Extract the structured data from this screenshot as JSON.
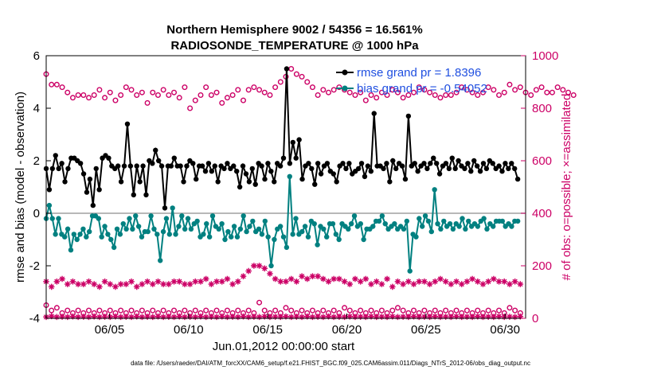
{
  "chart_data": {
    "type": "line",
    "title": "Northern Hemisphere 9002 / 54356 = 16.561%",
    "subtitle": "RADIOSONDE_TEMPERATURE @ 1000 hPa",
    "xlabel": "Jun.01,2012 00:00:00 start",
    "ylabel": "rmse and bias (model - observation)",
    "y2label": "# of obs: o=possible; ×=assimilated",
    "footnote": "data file: /Users/raeder/DAI/ATM_forcXX/CAM6_setup/f.e21.FHIST_BGC.f09_025.CAM6assim.011/Diags_NTrS_2012-06/obs_diag_output.nc",
    "xlim": [
      1.0,
      31.3
    ],
    "ylim": [
      -4,
      6
    ],
    "y2lim": [
      0,
      1000
    ],
    "xticks": [
      {
        "v": 5,
        "label": "06/05"
      },
      {
        "v": 10,
        "label": "06/10"
      },
      {
        "v": 15,
        "label": "06/15"
      },
      {
        "v": 20,
        "label": "06/20"
      },
      {
        "v": 25,
        "label": "06/25"
      },
      {
        "v": 30,
        "label": "06/30"
      }
    ],
    "yticks": [
      -4,
      -2,
      0,
      2,
      4,
      6
    ],
    "y2ticks": [
      0,
      200,
      400,
      600,
      800,
      1000
    ],
    "colors": {
      "rmse": "#000000",
      "bias": "#008080",
      "obs": "#cc0066",
      "zero": "#a0a0a0",
      "legend_text": "#1f4fe0"
    },
    "x_start": 1.0,
    "x_step": 0.25,
    "series": [
      {
        "name": "rmse",
        "legend": "rmse grand pr = 1.8396",
        "values": [
          1.7,
          0.9,
          1.7,
          2.2,
          1.7,
          1.9,
          1.2,
          1.7,
          2.1,
          2.1,
          2.0,
          1.9,
          1.5,
          0.8,
          1.3,
          0.3,
          1.7,
          0.9,
          2.1,
          2.2,
          2.1,
          1.8,
          1.7,
          1.8,
          1.2,
          1.8,
          3.4,
          1.8,
          0.7,
          1.8,
          1.2,
          1.8,
          0.7,
          2.0,
          1.9,
          2.4,
          2.0,
          1.8,
          0.2,
          1.8,
          1.8,
          2.1,
          1.8,
          1.8,
          1.2,
          1.8,
          2.0,
          1.9,
          1.3,
          1.8,
          1.8,
          1.6,
          1.9,
          1.6,
          1.8,
          1.2,
          1.8,
          1.7,
          1.9,
          1.7,
          1.8,
          1.6,
          1.0,
          1.8,
          1.5,
          1.2,
          1.7,
          1.1,
          1.9,
          1.8,
          1.3,
          1.9,
          1.6,
          1.2,
          1.9,
          1.8,
          2.1,
          5.5,
          1.9,
          2.7,
          2.1,
          2.8,
          1.3,
          1.8,
          1.9,
          1.7,
          1.1,
          1.9,
          1.5,
          1.8,
          1.9,
          1.6,
          1.5,
          1.2,
          1.8,
          1.9,
          1.7,
          1.9,
          1.5,
          1.6,
          1.7,
          1.9,
          1.4,
          1.8,
          1.6,
          3.8,
          1.8,
          1.8,
          1.7,
          1.9,
          1.2,
          2.0,
          1.7,
          1.9,
          1.8,
          1.3,
          3.7,
          1.8,
          1.9,
          1.6,
          1.8,
          1.9,
          1.7,
          1.9,
          2.1,
          1.9,
          1.5,
          1.8,
          1.9,
          1.7,
          2.1,
          1.7,
          2.0,
          1.8,
          1.7,
          1.9,
          1.6,
          2.0,
          1.8,
          1.6,
          1.9,
          1.7,
          2.0,
          1.9,
          1.7,
          1.8,
          1.6,
          1.9,
          1.7,
          1.9,
          1.7,
          1.3
        ]
      },
      {
        "name": "bias",
        "legend": "bias grand pr = -0.54052",
        "values": [
          -0.2,
          0.3,
          -0.2,
          -0.8,
          -0.2,
          -0.8,
          -0.9,
          -0.6,
          -1.4,
          -0.8,
          -1.0,
          -0.8,
          -0.6,
          -0.9,
          -0.7,
          -0.1,
          -0.1,
          -0.2,
          -0.9,
          -0.5,
          -0.8,
          -1.0,
          -1.3,
          -0.6,
          -0.8,
          -0.4,
          -0.6,
          -0.2,
          -0.6,
          -0.1,
          -0.5,
          -0.9,
          -0.7,
          -0.7,
          -0.1,
          -0.6,
          -0.8,
          -1.8,
          -0.7,
          -0.2,
          -0.8,
          0.2,
          -0.8,
          -0.5,
          -0.1,
          -0.6,
          -0.2,
          -0.6,
          -0.4,
          -0.3,
          -0.9,
          -0.8,
          -0.4,
          -0.9,
          -0.1,
          -0.5,
          -0.6,
          -0.4,
          -1.0,
          -0.7,
          -0.9,
          -0.5,
          -0.9,
          -0.6,
          -0.1,
          -0.7,
          -0.5,
          -0.3,
          -0.7,
          -0.6,
          -0.8,
          -0.3,
          -0.9,
          -2.0,
          -1.0,
          -0.6,
          -0.5,
          -0.9,
          -1.3,
          1.4,
          -0.8,
          -0.2,
          -0.8,
          -0.7,
          -0.5,
          -0.9,
          -0.3,
          -0.4,
          -1.2,
          -0.5,
          -0.6,
          -0.9,
          -0.4,
          -0.4,
          -0.8,
          -1.0,
          -0.4,
          -0.5,
          -0.6,
          -0.4,
          -0.1,
          -0.5,
          -0.4,
          -1.0,
          -0.6,
          -0.6,
          -0.5,
          -0.3,
          -0.3,
          -0.1,
          -0.4,
          -0.6,
          -0.5,
          -0.4,
          -0.6,
          -0.5,
          -0.6,
          -0.3,
          -2.2,
          -0.8,
          -0.9,
          -0.2,
          -0.5,
          -0.1,
          -0.3,
          -0.7,
          0.9,
          -0.4,
          -0.6,
          -0.3,
          -0.5,
          -0.4,
          -0.6,
          -0.4,
          -0.5,
          -0.2,
          -0.6,
          -0.3,
          -0.5,
          -0.4,
          -0.5,
          -0.3,
          -0.2,
          -0.6,
          -0.4,
          -0.5,
          -0.3,
          -0.3,
          -0.3,
          -0.5,
          -0.4,
          -0.5,
          -0.3,
          -0.3
        ]
      },
      {
        "name": "obs_possible_high",
        "values": [
          930,
          890,
          890,
          880,
          860,
          840,
          850,
          850,
          840,
          850,
          870,
          840,
          860,
          830,
          850,
          880,
          870,
          850,
          860,
          820,
          860,
          850,
          870,
          850,
          860,
          840,
          880,
          800,
          830,
          850,
          880,
          850,
          860,
          820,
          840,
          850,
          870,
          830,
          870,
          880,
          870,
          860,
          850,
          880,
          900,
          920,
          950,
          930,
          920,
          900,
          880,
          850,
          870,
          860,
          870,
          880,
          870,
          860,
          850,
          860,
          830,
          850,
          840,
          860,
          850,
          870,
          860,
          840,
          850,
          860,
          880,
          870,
          860,
          850,
          840,
          850,
          850,
          860,
          880,
          870,
          860,
          850,
          860,
          880,
          870,
          850,
          860,
          890,
          870,
          880,
          860,
          850,
          870,
          880,
          860,
          860,
          880,
          870,
          860,
          850
        ]
      },
      {
        "name": "obs_assimilated_high",
        "values": [
          140,
          120,
          140,
          150,
          130,
          140,
          130,
          130,
          140,
          130,
          120,
          140,
          130,
          120,
          130,
          130,
          140,
          120,
          130,
          140,
          130,
          140,
          130,
          130,
          140,
          140,
          130,
          130,
          140,
          140,
          150,
          130,
          140,
          140,
          150,
          130,
          140,
          160,
          180,
          200,
          200,
          190,
          170,
          150,
          140,
          140,
          150,
          140,
          160,
          150,
          160,
          160,
          150,
          140,
          150,
          150,
          140,
          130,
          150,
          140,
          150,
          130,
          140,
          130,
          150,
          120,
          140,
          130,
          140,
          130,
          140,
          140,
          130,
          140,
          150,
          140,
          130,
          140,
          130,
          140,
          150,
          140,
          130,
          140,
          150,
          140,
          140,
          130,
          140,
          130
        ]
      },
      {
        "name": "obs_possible_low",
        "values": [
          50,
          30,
          40,
          20,
          30,
          20,
          30,
          20,
          30,
          20,
          30,
          20,
          30,
          20,
          30,
          20,
          30,
          20,
          30,
          20,
          30,
          20,
          30,
          20,
          30,
          20,
          30,
          20,
          30,
          20,
          30,
          20,
          30,
          20,
          30,
          20,
          30,
          20,
          30,
          20,
          60,
          30,
          20,
          30,
          20,
          40,
          30,
          20,
          30,
          20,
          30,
          20,
          30,
          20,
          30,
          20,
          40,
          30,
          20,
          30,
          20,
          30,
          20,
          30,
          20,
          30,
          40,
          30,
          20,
          30,
          20,
          30,
          20,
          30,
          20,
          30,
          20,
          30,
          20,
          30,
          20,
          30,
          20,
          30,
          20,
          30,
          20,
          40,
          30,
          20
        ]
      },
      {
        "name": "obs_assimilated_low",
        "values": [
          5,
          8,
          5,
          6,
          5,
          7,
          5,
          6,
          5,
          7,
          5,
          6,
          5,
          7,
          5,
          6,
          5,
          7,
          5,
          6,
          5,
          7,
          5,
          6,
          5,
          7,
          5,
          6,
          5,
          7,
          5,
          6,
          5,
          7,
          5,
          6,
          5,
          7,
          5,
          6,
          5,
          7,
          5,
          6,
          5,
          7,
          5,
          6,
          5,
          7,
          5,
          6,
          5,
          7,
          5,
          6,
          5,
          7,
          5,
          6,
          5,
          7,
          5,
          6,
          5,
          7,
          5,
          6,
          5,
          7,
          5,
          6,
          5,
          7,
          5,
          6,
          5,
          7,
          5,
          6,
          5,
          7,
          5,
          6,
          5,
          7,
          5,
          6,
          5,
          7
        ]
      }
    ]
  }
}
